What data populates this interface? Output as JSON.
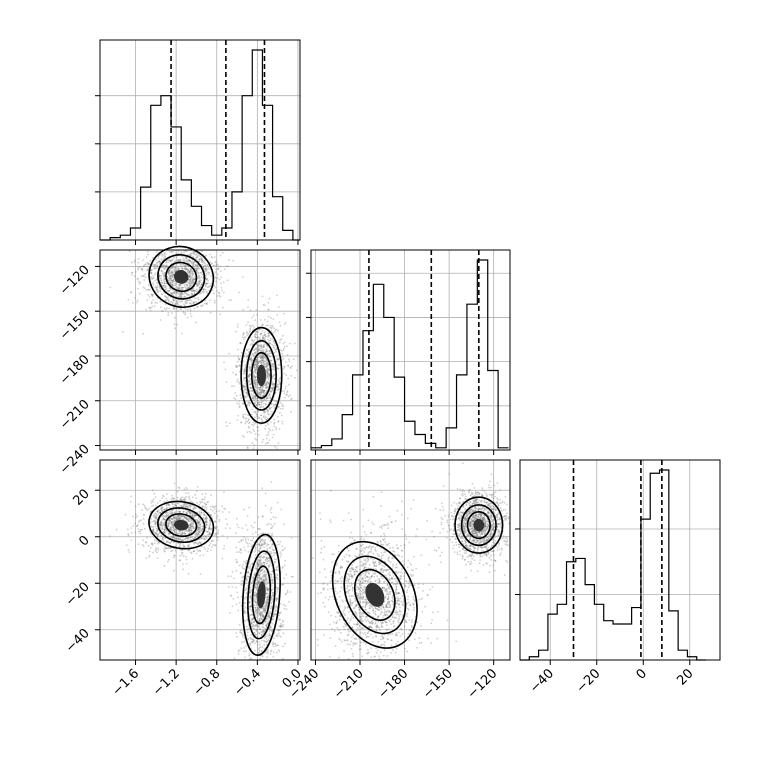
{
  "chart_data": {
    "type": "corner",
    "parameters": 3,
    "axes": {
      "p0": {
        "range": [
          -1.95,
          0.02
        ],
        "ticks": [
          -1.6,
          -1.2,
          -0.8,
          -0.4,
          0.0
        ],
        "tick_labels": [
          "−1.6",
          "−1.2",
          "−0.8",
          "−0.4",
          "0.0"
        ]
      },
      "p1": {
        "range": [
          -243,
          -109
        ],
        "ticks": [
          -240,
          -210,
          -180,
          -150,
          -120
        ],
        "tick_labels": [
          "−240",
          "−210",
          "−180",
          "−150",
          "−120"
        ]
      },
      "p2": {
        "range": [
          -53,
          33
        ],
        "ticks": [
          -40,
          -20,
          0,
          20
        ],
        "tick_labels": [
          "−40",
          "−20",
          "0",
          "20"
        ]
      }
    },
    "marginals": [
      {
        "param": "p0",
        "quantiles": [
          -1.25,
          -0.71,
          -0.33
        ],
        "bin_edges": [
          -1.95,
          -1.85,
          -1.75,
          -1.65,
          -1.55,
          -1.45,
          -1.35,
          -1.25,
          -1.15,
          -1.05,
          -0.95,
          -0.85,
          -0.75,
          -0.65,
          -0.55,
          -0.45,
          -0.35,
          -0.25,
          -0.15,
          -0.05,
          0.02
        ],
        "counts": [
          0,
          1,
          2,
          5,
          22,
          56,
          60,
          47,
          25,
          14,
          6,
          2,
          5,
          20,
          60,
          79,
          56,
          18,
          4,
          0
        ]
      },
      {
        "param": "p1",
        "quantiles": [
          -204,
          -162,
          -130
        ],
        "bin_edges": [
          -243,
          -236,
          -229,
          -222,
          -215,
          -208,
          -201,
          -194,
          -187,
          -180,
          -173,
          -166,
          -159,
          -152,
          -145,
          -138,
          -131,
          -124,
          -117,
          -110
        ],
        "counts": [
          1,
          2,
          5,
          16,
          34,
          54,
          75,
          60,
          33,
          13,
          7,
          3,
          1,
          10,
          34,
          66,
          86,
          36,
          1
        ]
      },
      {
        "param": "p2",
        "quantiles": [
          -30,
          -1,
          8
        ],
        "bin_edges": [
          -53,
          -49,
          -45,
          -41,
          -37,
          -33,
          -29,
          -25,
          -21,
          -17,
          -13,
          -9,
          -5,
          -1,
          3,
          7,
          11,
          15,
          19,
          23,
          27
        ],
        "counts": [
          0,
          1,
          3,
          14,
          17,
          30,
          31,
          23,
          17,
          12,
          11,
          11,
          16,
          43,
          57,
          58,
          15,
          3,
          1,
          0
        ]
      }
    ],
    "joints": [
      {
        "x": "p0",
        "y": "p1",
        "modes": [
          {
            "cx": -1.15,
            "cy": -127,
            "sx": 0.16,
            "sy": 10,
            "rot": -24
          },
          {
            "cx": -0.36,
            "cy": -193,
            "sx": 0.1,
            "sy": 16,
            "rot": 0
          }
        ]
      },
      {
        "x": "p0",
        "y": "p2",
        "modes": [
          {
            "cx": -1.15,
            "cy": 5,
            "sx": 0.16,
            "sy": 5,
            "rot": -10
          },
          {
            "cx": -0.36,
            "cy": -25,
            "sx": 0.09,
            "sy": 13,
            "rot": -4
          }
        ]
      },
      {
        "x": "p1",
        "y": "p2",
        "modes": [
          {
            "cx": -200,
            "cy": -25,
            "sx": 13,
            "sy": 12,
            "rot": 25
          },
          {
            "cx": -130,
            "cy": 5,
            "sx": 8,
            "sy": 6,
            "rot": 0
          }
        ]
      }
    ]
  }
}
